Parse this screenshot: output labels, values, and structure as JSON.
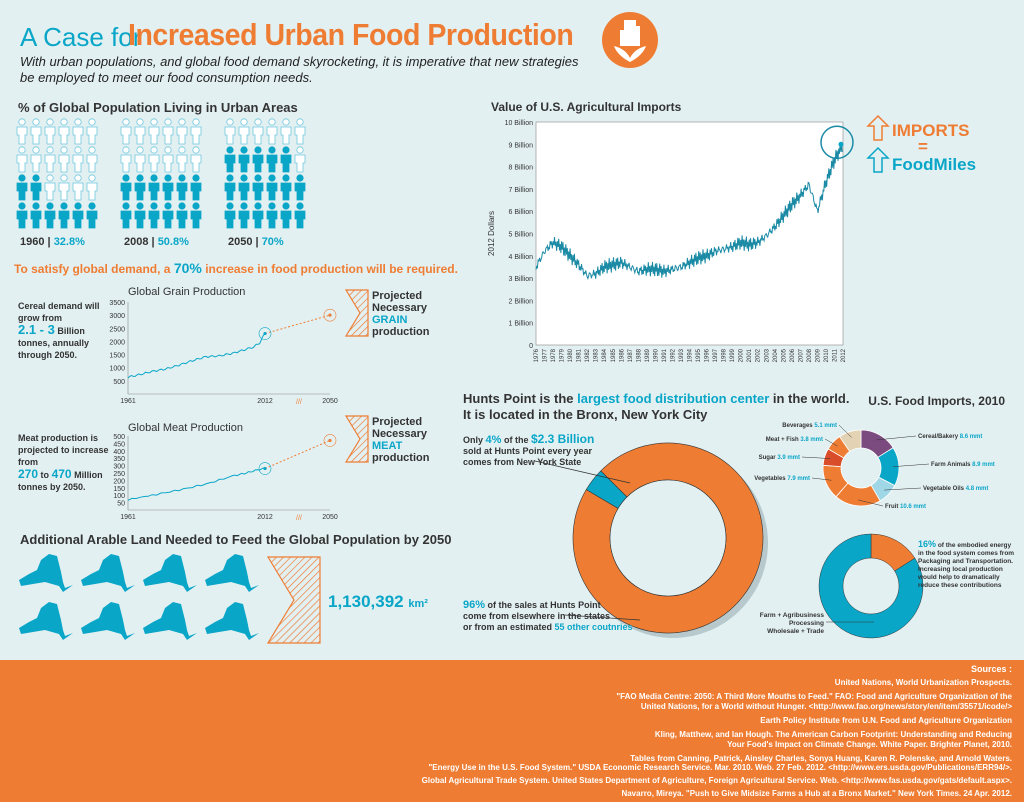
{
  "header": {
    "title_a": "A Case for",
    "title_b": "Increased Urban Food Production",
    "subtitle": "With urban populations, and global food demand skyrocketing, it is imperative that new strategies be employed to meet our food consumption needs."
  },
  "urban": {
    "heading": "% of Global Population Living in Urban Areas",
    "groups": [
      {
        "year": "1960",
        "pct": "32.8%",
        "value": 32.8
      },
      {
        "year": "2008",
        "pct": "50.8%",
        "value": 50.8
      },
      {
        "year": "2050",
        "pct": "70%",
        "value": 70
      }
    ],
    "sep": "|"
  },
  "demand": {
    "pre": "To satisfy global demand, a",
    "pct": "70%",
    "post": "increase in food production will be required."
  },
  "grain": {
    "note_a": "Cereal demand will grow from",
    "range": "2.1 - 3",
    "unit": "Billion",
    "note_b": "tonnes, annually through 2050.",
    "proj_a": "Projected",
    "proj_b": "Necessary",
    "proj_c": "GRAIN",
    "proj_d": "production"
  },
  "meat": {
    "note_a": "Meat production is projected to increase from",
    "from": "270",
    "to_word": "to",
    "to": "470",
    "unit": "Million",
    "note_b": "tonnes by  2050.",
    "proj_a": "Projected",
    "proj_b": "Necessary",
    "proj_c": "MEAT",
    "proj_d": "production"
  },
  "land": {
    "heading": "Additional Arable Land Needed to Feed the Global Population by 2050",
    "value": "1,130,392",
    "unit": "km²"
  },
  "imports_label": {
    "a": "IMPORTS",
    "b": "=",
    "c": "FoodMiles"
  },
  "hunts": {
    "head_a": "Hunts Point is the",
    "head_b": "largest food distribution center",
    "head_c": "in the world.",
    "head_d": "It is located in the Bronx, New York City",
    "only": "Only",
    "pct4": "4%",
    "of_the": "of the",
    "amount": "$2.3 Billion",
    "line2": "sold at Hunts Point every year",
    "line3": "comes from New York State",
    "pct96": "96%",
    "l96a": "of the sales at Hunts Point",
    "l96b": "come from elsewhere in the states",
    "l96c": "or from an estimated",
    "countries": "55 other coutnries"
  },
  "energy": {
    "pct": "16%",
    "text": "of the embodied energy in the food system comes from Packaging and Transportation. Increasing local production would help to dramatically reduce these contributions",
    "label_a": "Farm + Agribusiness",
    "label_b": "Processing",
    "label_c": "Wholesale + Trade"
  },
  "sources": {
    "heading": "Sources :",
    "items": [
      "United Nations, World Urbanization Prospects.",
      "\"FAO Media Centre: 2050: A Third More Mouths to Feed.\" FAO: Food and Agriculture Organization of the",
      "United Nations, for a World without Hunger. <http://www.fao.org/news/story/en/item/35571/icode/>",
      "Earth Policy Institute from U.N. Food and Agriculture Organization",
      "Kling, Matthew, and Ian Hough. The American Carbon Footprint: Understanding and Reducing",
      "Your Food's Impact on Climate Change. White Paper. Brighter Planet, 2010.",
      "Tables from Canning, Patrick, Ainsley Charles, Sonya Huang, Karen R. Polenske, and Arnold Waters.",
      "\"Energy Use in the U.S. Food System.\" USDA Economic Research Service. Mar. 2010. Web. 27 Feb. 2012. <http://www.ers.usda.gov/Publications/ERR94/>.",
      "Global Agricultural Trade System. United States Department of Agriculture, Foreign Agricultural Service. Web. <http://www.fas.usda.gov/gats/default.aspx>.",
      "Navarro, Mireya. \"Push to Give Midsize Farms a Hub at a Bronx Market.\" New York Times. 24 Apr. 2012."
    ]
  },
  "colors": {
    "orange": "#ee7d33",
    "blue": "#0aa6c8",
    "purple": "#7b4a7e",
    "tan": "#e3d2b3",
    "light_blue": "#9fd7e6",
    "red_orange": "#d94d2a"
  },
  "chart_data": [
    {
      "type": "bar",
      "title": "% of Global Population Living in Urban Areas",
      "categories": [
        "1960",
        "2008",
        "2050"
      ],
      "values": [
        32.8,
        50.8,
        70
      ]
    },
    {
      "type": "line",
      "title": "Global Grain Production",
      "x_ticks": [
        "1961",
        "2012",
        "2050"
      ],
      "y_ticks": [
        "500",
        "1000",
        "1500",
        "2000",
        "2500",
        "3000",
        "3500"
      ],
      "ylim": [
        0,
        3500
      ],
      "x": [
        1961,
        1965,
        1970,
        1975,
        1980,
        1985,
        1990,
        1995,
        2000,
        2005,
        2008,
        2010,
        2012
      ],
      "values": [
        640,
        730,
        860,
        950,
        1100,
        1270,
        1420,
        1450,
        1550,
        1700,
        1800,
        1950,
        2300
      ],
      "projection": {
        "x": [
          2012,
          2050
        ],
        "values": [
          2300,
          3000
        ]
      }
    },
    {
      "type": "line",
      "title": "Global Meat Production",
      "x_ticks": [
        "1961",
        "2012",
        "2050"
      ],
      "y_ticks": [
        "50",
        "100",
        "150",
        "200",
        "250",
        "300",
        "350",
        "400",
        "450",
        "500"
      ],
      "ylim": [
        0,
        500
      ],
      "x": [
        1961,
        1970,
        1980,
        1990,
        2000,
        2005,
        2010,
        2012
      ],
      "values": [
        70,
        100,
        135,
        175,
        230,
        250,
        275,
        280
      ],
      "projection": {
        "x": [
          2012,
          2050
        ],
        "values": [
          280,
          470
        ]
      }
    },
    {
      "type": "line",
      "title": "Value of U.S. Agricultural Imports",
      "ylabel": "2012 Dollars",
      "y_ticks": [
        "0",
        "1 Billion",
        "2 Billion",
        "3 Billion",
        "4 Billion",
        "5 Billion",
        "6 Billion",
        "7 Billion",
        "8 Billion",
        "9 Billion",
        "10 Billion"
      ],
      "ylim": [
        0,
        10
      ],
      "x_ticks": [
        "1976",
        "1977",
        "1978",
        "1979",
        "1980",
        "1981",
        "1982",
        "1983",
        "1984",
        "1985",
        "1986",
        "1987",
        "1988",
        "1989",
        "1990",
        "1991",
        "1992",
        "1993",
        "1994",
        "1995",
        "1996",
        "1997",
        "1998",
        "1999",
        "2000",
        "2001",
        "2002",
        "2003",
        "2004",
        "2005",
        "2006",
        "2007",
        "2008",
        "2009",
        "2010",
        "2011",
        "2012"
      ],
      "x": [
        1976,
        1977,
        1978,
        1979,
        1980,
        1981,
        1982,
        1983,
        1984,
        1985,
        1986,
        1987,
        1988,
        1989,
        1990,
        1991,
        1992,
        1993,
        1994,
        1995,
        1996,
        1997,
        1998,
        1999,
        2000,
        2001,
        2002,
        2003,
        2004,
        2005,
        2006,
        2007,
        2008,
        2009,
        2010,
        2011,
        2012
      ],
      "values": [
        3.5,
        4.2,
        4.6,
        4.4,
        4.0,
        3.6,
        3.1,
        3.2,
        3.5,
        3.6,
        3.7,
        3.5,
        3.3,
        3.4,
        3.4,
        3.3,
        3.4,
        3.5,
        3.7,
        3.9,
        4.0,
        4.2,
        4.3,
        4.4,
        4.6,
        4.5,
        4.6,
        4.9,
        5.3,
        5.8,
        6.3,
        6.7,
        7.2,
        6.0,
        7.3,
        8.3,
        9.0
      ]
    },
    {
      "type": "pie",
      "title": "Hunts Point sales",
      "categories": [
        "New York State",
        "Elsewhere"
      ],
      "values": [
        4,
        96
      ]
    },
    {
      "type": "pie",
      "title": "U.S. Food Imports, 2010",
      "categories": [
        "Cereal/Bakery",
        "Farm Animals",
        "Vegetable Oils",
        "Fruit",
        "Vegetables",
        "Sugar",
        "Meat + Fish",
        "Beverages"
      ],
      "labels": [
        "Cereal/Bakery 8.6 mmt",
        "Farm Animals 8.9 mmt",
        "Vegetable Oils 4.8 mmt",
        "Fruit 10.6 mmt",
        "Vegetables 7.9 mmt",
        "Sugar 3.9 mmt",
        "Meat + Fish 3.8 mmt",
        "Beverages 5.1 mmt"
      ],
      "values": [
        8.6,
        8.9,
        4.8,
        10.6,
        7.9,
        3.9,
        3.8,
        5.1
      ]
    },
    {
      "type": "pie",
      "title": "Embodied energy in the food system",
      "categories": [
        "Packaging and Transportation",
        "Farm + Agribusiness, Processing, Wholesale + Trade"
      ],
      "values": [
        16,
        84
      ]
    }
  ]
}
